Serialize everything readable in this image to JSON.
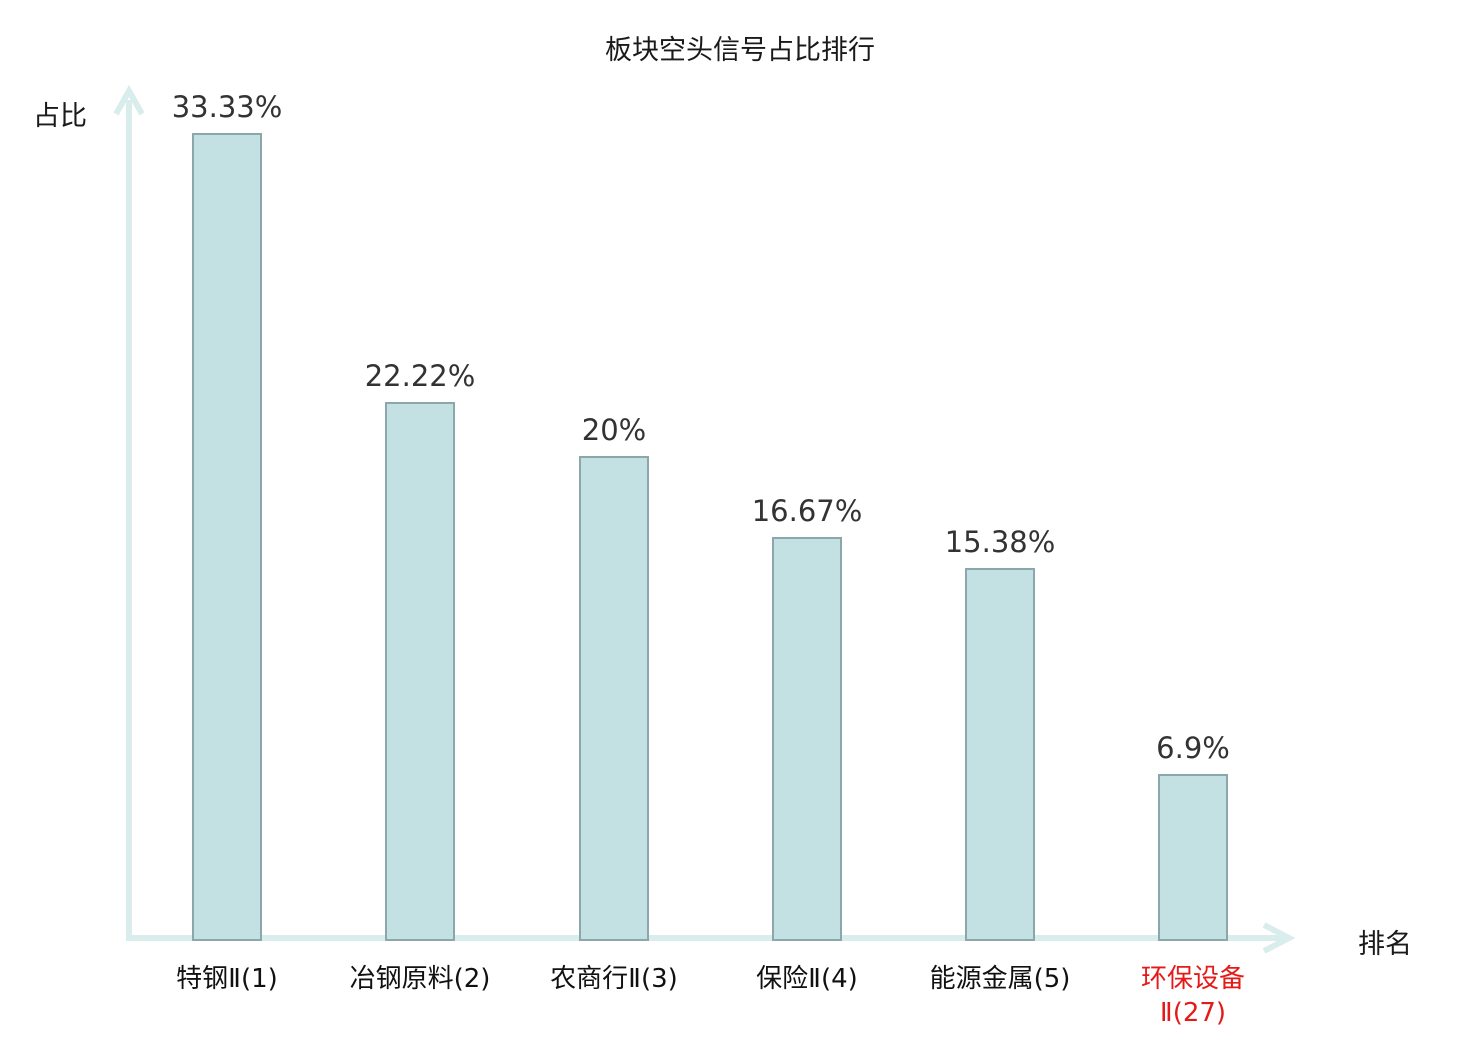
{
  "chart_data": {
    "type": "bar",
    "title": "板块空头信号占比排行",
    "xlabel": "排名",
    "ylabel": "占比",
    "categories": [
      "特钢Ⅱ(1)",
      "冶钢原料(2)",
      "农商行Ⅱ(3)",
      "保险Ⅱ(4)",
      "能源金属(5)",
      "环保设备Ⅱ(27)"
    ],
    "categories_display": [
      "特钢Ⅱ(1)",
      "冶钢原料(2)",
      "农商行Ⅱ(3)",
      "保险Ⅱ(4)",
      "能源金属(5)",
      "环保设备\nⅡ(27)"
    ],
    "values": [
      33.33,
      22.22,
      20,
      16.67,
      15.38,
      6.9
    ],
    "value_labels": [
      "33.33%",
      "22.22%",
      "20%",
      "16.67%",
      "15.38%",
      "6.9%"
    ],
    "ylim": [
      0,
      34.8
    ],
    "grid": false,
    "legend": "none",
    "tick_labels_on_y_axis": "none",
    "bar_fill_color": "#c3e0e3",
    "bar_border_color": "#8ca7ab",
    "axis_color": "#d9eded",
    "value_label_color": "#333333",
    "category_label_color": "#111111",
    "title_color": "#1a1a1a",
    "highlight_index": 5,
    "highlight_color": "#e61919"
  }
}
